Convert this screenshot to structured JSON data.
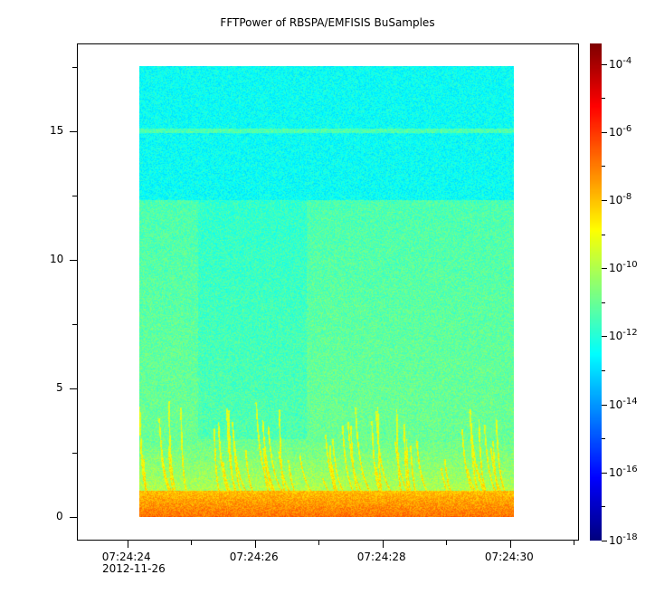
{
  "chart_data": {
    "type": "heatmap",
    "title": "FFTPower of RBSPA/EMFISIS  BuSamples",
    "xlabel": "",
    "ylabel": "",
    "x_ticks": [
      "07:24:24",
      "07:24:26",
      "07:24:28",
      "07:24:30"
    ],
    "x_date_label": "2012-11-26",
    "x_tick_seconds": [
      24,
      26,
      28,
      30
    ],
    "xlim_seconds": [
      23.21,
      31.08
    ],
    "data_x_seconds": [
      24.18,
      30.05
    ],
    "y_ticks": [
      "0",
      "5",
      "10",
      "15"
    ],
    "y_tick_values": [
      0,
      5,
      10,
      15
    ],
    "ylim": [
      -0.9,
      18.4
    ],
    "data_y": [
      0,
      17.5
    ],
    "colorbar": {
      "scale": "log",
      "range_exp": [
        -18,
        -3.4
      ],
      "tick_exps": [
        -4,
        -6,
        -8,
        -10,
        -12,
        -14,
        -16,
        -18
      ],
      "tick_base": "10",
      "colormap": "jet"
    },
    "features": {
      "background_exp_low": -11,
      "background_exp_high": -12.4,
      "band_boundary_y": 12.3,
      "line_y": 15,
      "low_freq_exp": -7.5
    }
  }
}
